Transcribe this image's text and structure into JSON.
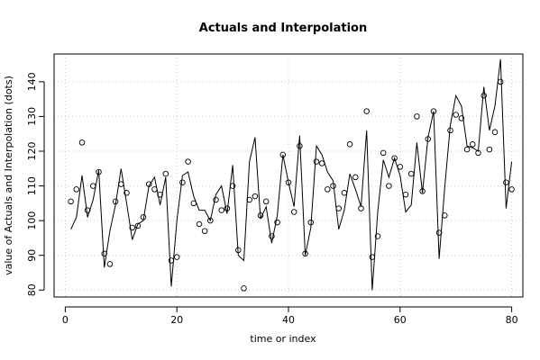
{
  "chart_data": {
    "type": "line",
    "title": "Actuals and Interpolation",
    "xlabel": "time or index",
    "ylabel": "value of Actuals and Interpolation (dots)",
    "xlim": [
      -2,
      82
    ],
    "ylim": [
      78,
      148
    ],
    "xticks": [
      0,
      20,
      40,
      60,
      80
    ],
    "yticks": [
      80,
      90,
      100,
      110,
      120,
      130,
      140
    ],
    "grid": true,
    "legend": "none",
    "series": [
      {
        "kind": "line",
        "x": [
          1,
          2,
          3,
          4,
          5,
          6,
          7,
          8,
          9,
          10,
          11,
          12,
          13,
          14,
          15,
          16,
          17,
          18,
          19,
          20,
          21,
          22,
          23,
          24,
          25,
          26,
          27,
          28,
          29,
          30,
          31,
          32,
          33,
          34,
          35,
          36,
          37,
          38,
          39,
          40,
          41,
          42,
          43,
          44,
          45,
          46,
          47,
          48,
          49,
          50,
          51,
          52,
          53,
          54,
          55,
          56,
          57,
          58,
          59,
          60,
          61,
          62,
          63,
          64,
          65,
          66,
          67,
          68,
          69,
          70,
          71,
          72,
          73,
          74,
          75,
          76,
          77,
          78,
          79,
          80
        ],
        "y": [
          97.5,
          101,
          113,
          101,
          106,
          114.5,
          86.5,
          97,
          104.5,
          115,
          105,
          94.5,
          99,
          100,
          110,
          112.5,
          104.5,
          112.5,
          81,
          100,
          113,
          114,
          107,
          103,
          103,
          100,
          107.5,
          110,
          102,
          116,
          90,
          88.5,
          117,
          124,
          100.5,
          104,
          93.5,
          101.5,
          119,
          111,
          104,
          124.5,
          90,
          98,
          121.5,
          119,
          114,
          111.5,
          97.5,
          103,
          113.5,
          109,
          104,
          126,
          80,
          102.5,
          117.5,
          112.5,
          118,
          113,
          102.5,
          104.5,
          122.5,
          108,
          124,
          131.5,
          89,
          109.5,
          127.5,
          136,
          133,
          121.5,
          121,
          120,
          138.5,
          126,
          133,
          146.5,
          103.5,
          117
        ]
      },
      {
        "kind": "points",
        "x": [
          1,
          2,
          3,
          4,
          5,
          6,
          7,
          8,
          9,
          10,
          11,
          12,
          13,
          14,
          15,
          16,
          17,
          18,
          19,
          20,
          21,
          22,
          23,
          24,
          25,
          26,
          27,
          28,
          29,
          30,
          31,
          32,
          33,
          34,
          35,
          36,
          37,
          38,
          39,
          40,
          41,
          42,
          43,
          44,
          45,
          46,
          47,
          48,
          49,
          50,
          51,
          52,
          53,
          54,
          55,
          56,
          57,
          58,
          59,
          60,
          61,
          62,
          63,
          64,
          65,
          66,
          67,
          68,
          69,
          70,
          71,
          72,
          73,
          74,
          75,
          76,
          77,
          78,
          79,
          80
        ],
        "y": [
          105.5,
          109,
          122.5,
          103,
          110,
          114,
          90.5,
          87.5,
          105.5,
          110.5,
          108,
          98,
          98.5,
          101,
          110.5,
          109,
          107.5,
          113.5,
          88.5,
          89.5,
          111,
          117,
          105,
          99,
          97,
          100,
          106,
          103,
          103.5,
          110,
          91.5,
          80.5,
          106,
          107,
          101.5,
          105.5,
          95.5,
          99.5,
          119,
          111,
          102.5,
          121.5,
          90.5,
          99.5,
          117,
          116.5,
          109,
          110,
          103.5,
          108,
          122,
          112.5,
          103.5,
          131.5,
          89.5,
          95.5,
          119.5,
          110,
          118,
          115.5,
          107.5,
          113.5,
          130,
          108.5,
          123.5,
          131.5,
          96.5,
          101.5,
          126,
          130.5,
          129.5,
          120.5,
          122,
          119.5,
          136,
          120.5,
          125.5,
          140,
          111,
          109
        ]
      }
    ]
  }
}
